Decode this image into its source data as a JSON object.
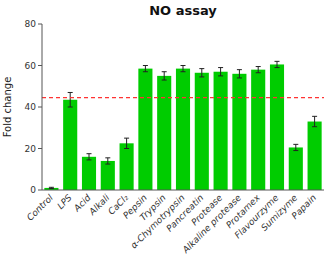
{
  "chart_data": {
    "type": "bar",
    "title": "NO assay",
    "ylabel": "Fold change",
    "categories": [
      "Control",
      "LPS",
      "Acid",
      "Alkali",
      "CaCl₂",
      "Pepsin",
      "Trypsin",
      "α-Chymotrypsin",
      "Pancreatin",
      "Protease",
      "Alkaline protease",
      "Protamex",
      "Flavourzyme",
      "Sumizyme",
      "Papain"
    ],
    "values": [
      1.0,
      43.5,
      16.0,
      14.0,
      22.5,
      58.5,
      55.0,
      58.5,
      56.5,
      57.0,
      56.0,
      58.0,
      60.5,
      20.5,
      33.0
    ],
    "errors": [
      0.3,
      3.5,
      1.5,
      1.5,
      2.5,
      1.5,
      2.0,
      1.5,
      2.0,
      2.0,
      2.0,
      1.5,
      1.5,
      1.5,
      2.5
    ],
    "color": "#00CC00",
    "reference_line": 44.5,
    "reference_line_color": "#FF3333",
    "ylim": [
      0,
      80
    ],
    "yticks": [
      0,
      20,
      40,
      60,
      80
    ],
    "grid": false
  }
}
